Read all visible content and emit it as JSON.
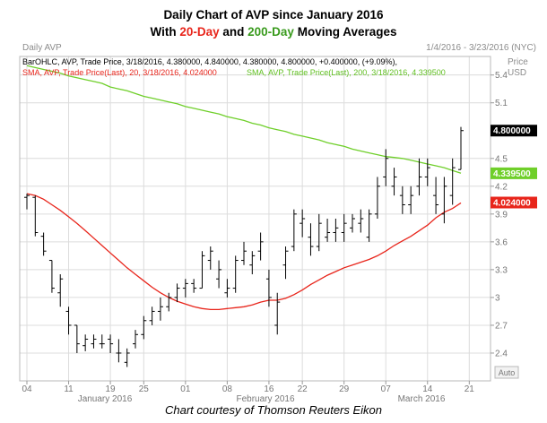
{
  "title": {
    "line1": "Daily Chart of AVP since January 2016",
    "line2_prefix": "With ",
    "line2_red": "20-Day",
    "line2_mid": " and ",
    "line2_green": "200-Day",
    "line2_suffix": " Moving Averages"
  },
  "header": {
    "name": "Daily AVP",
    "range": "1/4/2016 - 3/23/2016 (NYC)",
    "unit_price": "Price",
    "unit_ccy": "USD",
    "auto_button": "Auto"
  },
  "legend": {
    "ohlc": "BarOHLC, AVP, Trade Price, 3/18/2016, 4.380000, 4.840000, 4.380000, 4.800000, +0.400000, (+9.09%),",
    "sma20": "SMA, AVP, Trade Price(Last), 20, 3/18/2016, 4.024000",
    "sma200": "SMA, AVP, Trade Price(Last), 200, 3/18/2016, 4.339500"
  },
  "caption": "Chart courtesy of Thomson Reuters Eikon",
  "colors": {
    "sma20": "#e8251b",
    "sma200": "#6fcf2a",
    "bars": "#000000",
    "grid": "#dcdcdc"
  },
  "chart_data": {
    "type": "bar",
    "subtype": "ohlc",
    "y_ticks": [
      "2.4",
      "2.7",
      "3",
      "3.3",
      "3.6",
      "3.9",
      "4.2",
      "4.5",
      "5.1",
      "5.4"
    ],
    "ylim": [
      2.1,
      5.6
    ],
    "x_day_ticks": [
      "04",
      "11",
      "19",
      "25",
      "01",
      "08",
      "16",
      "22",
      "29",
      "07",
      "14",
      "21"
    ],
    "x_month_labels": [
      "January 2016",
      "February 2016",
      "March 2016"
    ],
    "grid": true,
    "last_price_labels": {
      "close": "4.800000",
      "sma200": "4.339500",
      "sma20": "4.024000"
    },
    "dates": [
      "1/4",
      "1/5",
      "1/6",
      "1/7",
      "1/8",
      "1/11",
      "1/12",
      "1/13",
      "1/14",
      "1/15",
      "1/19",
      "1/20",
      "1/21",
      "1/22",
      "1/25",
      "1/26",
      "1/27",
      "1/28",
      "1/29",
      "2/1",
      "2/2",
      "2/3",
      "2/4",
      "2/5",
      "2/8",
      "2/9",
      "2/10",
      "2/11",
      "2/12",
      "2/16",
      "2/17",
      "2/18",
      "2/19",
      "2/22",
      "2/23",
      "2/24",
      "2/25",
      "2/26",
      "2/29",
      "3/1",
      "3/2",
      "3/3",
      "3/4",
      "3/7",
      "3/8",
      "3/9",
      "3/10",
      "3/11",
      "3/14",
      "3/15",
      "3/16",
      "3/17",
      "3/18"
    ],
    "ohlc": [
      [
        4.08,
        4.12,
        3.95,
        4.1
      ],
      [
        4.08,
        4.1,
        3.66,
        3.7
      ],
      [
        3.66,
        3.7,
        3.45,
        3.5
      ],
      [
        3.4,
        3.4,
        3.05,
        3.1
      ],
      [
        3.05,
        3.25,
        2.9,
        3.2
      ],
      [
        2.85,
        2.9,
        2.6,
        2.7
      ],
      [
        2.7,
        2.7,
        2.4,
        2.5
      ],
      [
        2.48,
        2.6,
        2.42,
        2.55
      ],
      [
        2.5,
        2.6,
        2.45,
        2.55
      ],
      [
        2.5,
        2.6,
        2.45,
        2.5
      ],
      [
        2.55,
        2.6,
        2.4,
        2.5
      ],
      [
        2.4,
        2.55,
        2.3,
        2.4
      ],
      [
        2.3,
        2.45,
        2.25,
        2.4
      ],
      [
        2.5,
        2.65,
        2.45,
        2.6
      ],
      [
        2.6,
        2.8,
        2.55,
        2.75
      ],
      [
        2.75,
        2.9,
        2.7,
        2.85
      ],
      [
        2.85,
        3.0,
        2.75,
        2.9
      ],
      [
        2.9,
        3.05,
        2.85,
        3.0
      ],
      [
        3.0,
        3.15,
        2.95,
        3.1
      ],
      [
        3.1,
        3.2,
        3.0,
        3.15
      ],
      [
        3.15,
        3.2,
        3.05,
        3.1
      ],
      [
        3.1,
        3.5,
        3.1,
        3.45
      ],
      [
        3.4,
        3.55,
        3.3,
        3.5
      ],
      [
        3.2,
        3.4,
        3.1,
        3.3
      ],
      [
        3.05,
        3.2,
        3.0,
        3.1
      ],
      [
        3.1,
        3.45,
        3.05,
        3.4
      ],
      [
        3.4,
        3.6,
        3.35,
        3.5
      ],
      [
        3.35,
        3.5,
        3.25,
        3.45
      ],
      [
        3.5,
        3.7,
        3.4,
        3.6
      ],
      [
        3.2,
        3.3,
        2.9,
        3.0
      ],
      [
        2.7,
        3.05,
        2.6,
        2.95
      ],
      [
        3.35,
        3.55,
        3.2,
        3.5
      ],
      [
        3.55,
        3.95,
        3.5,
        3.9
      ],
      [
        3.8,
        3.95,
        3.65,
        3.85
      ],
      [
        3.65,
        3.8,
        3.45,
        3.55
      ],
      [
        3.55,
        3.9,
        3.5,
        3.8
      ],
      [
        3.65,
        3.85,
        3.6,
        3.7
      ],
      [
        3.7,
        3.85,
        3.6,
        3.75
      ],
      [
        3.7,
        3.9,
        3.6,
        3.8
      ],
      [
        3.75,
        3.9,
        3.7,
        3.85
      ],
      [
        3.8,
        3.95,
        3.7,
        3.85
      ],
      [
        3.65,
        3.95,
        3.6,
        3.9
      ],
      [
        3.9,
        4.3,
        3.85,
        4.2
      ],
      [
        4.3,
        4.6,
        4.2,
        4.5
      ],
      [
        4.2,
        4.4,
        4.1,
        4.3
      ],
      [
        4.1,
        4.2,
        3.9,
        4.0
      ],
      [
        4.0,
        4.2,
        3.9,
        4.1
      ],
      [
        4.2,
        4.5,
        4.1,
        4.3
      ],
      [
        4.3,
        4.5,
        4.2,
        4.4
      ],
      [
        4.1,
        4.3,
        3.9,
        4.0
      ],
      [
        3.9,
        4.3,
        3.8,
        4.2
      ],
      [
        4.1,
        4.5,
        4.0,
        4.4
      ],
      [
        4.38,
        4.84,
        4.38,
        4.8
      ]
    ],
    "sma20": [
      4.12,
      4.1,
      4.06,
      4.0,
      3.94,
      3.87,
      3.8,
      3.72,
      3.64,
      3.56,
      3.48,
      3.4,
      3.32,
      3.25,
      3.18,
      3.11,
      3.05,
      3.0,
      2.96,
      2.93,
      2.9,
      2.88,
      2.87,
      2.87,
      2.88,
      2.89,
      2.9,
      2.92,
      2.95,
      2.97,
      2.97,
      2.99,
      3.03,
      3.08,
      3.14,
      3.19,
      3.24,
      3.28,
      3.32,
      3.35,
      3.38,
      3.41,
      3.45,
      3.5,
      3.56,
      3.61,
      3.66,
      3.72,
      3.78,
      3.86,
      3.92,
      3.96,
      4.02
    ],
    "sma200": [
      5.5,
      5.48,
      5.46,
      5.44,
      5.42,
      5.39,
      5.37,
      5.35,
      5.33,
      5.31,
      5.27,
      5.25,
      5.23,
      5.2,
      5.17,
      5.15,
      5.13,
      5.11,
      5.09,
      5.06,
      5.04,
      5.02,
      5.0,
      4.98,
      4.95,
      4.93,
      4.91,
      4.88,
      4.86,
      4.83,
      4.81,
      4.79,
      4.76,
      4.74,
      4.72,
      4.7,
      4.67,
      4.65,
      4.63,
      4.6,
      4.58,
      4.56,
      4.54,
      4.52,
      4.51,
      4.5,
      4.48,
      4.46,
      4.44,
      4.42,
      4.4,
      4.37,
      4.34
    ]
  }
}
